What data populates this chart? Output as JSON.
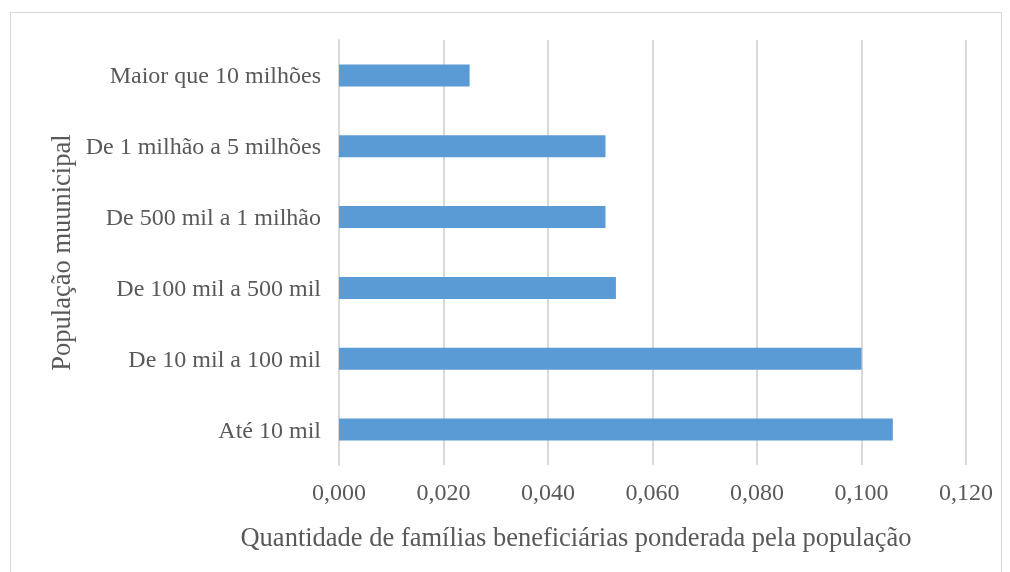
{
  "chart_data": {
    "type": "bar",
    "orientation": "horizontal",
    "categories": [
      "Maior que 10 milhões",
      "De 1 milhão a 5 milhões",
      "De 500 mil a 1 milhão",
      "De 100 mil a 500 mil",
      "De 10 mil a 100 mil",
      "Até 10 mil"
    ],
    "values": [
      0.025,
      0.051,
      0.051,
      0.053,
      0.1,
      0.106
    ],
    "color": "#5b9bd5",
    "xlabel": "Quantidade de famílias beneficiárias ponderada pela população",
    "ylabel": "População muunicipal",
    "xlim": [
      0,
      0.12
    ],
    "xticks": [
      {
        "value": 0,
        "label": "0,000"
      },
      {
        "value": 0.02,
        "label": "0,020"
      },
      {
        "value": 0.04,
        "label": "0,040"
      },
      {
        "value": 0.06,
        "label": "0,060"
      },
      {
        "value": 0.08,
        "label": "0,080"
      },
      {
        "value": 0.1,
        "label": "0,100"
      },
      {
        "value": 0.12,
        "label": "0,120"
      }
    ],
    "grid": "x"
  }
}
